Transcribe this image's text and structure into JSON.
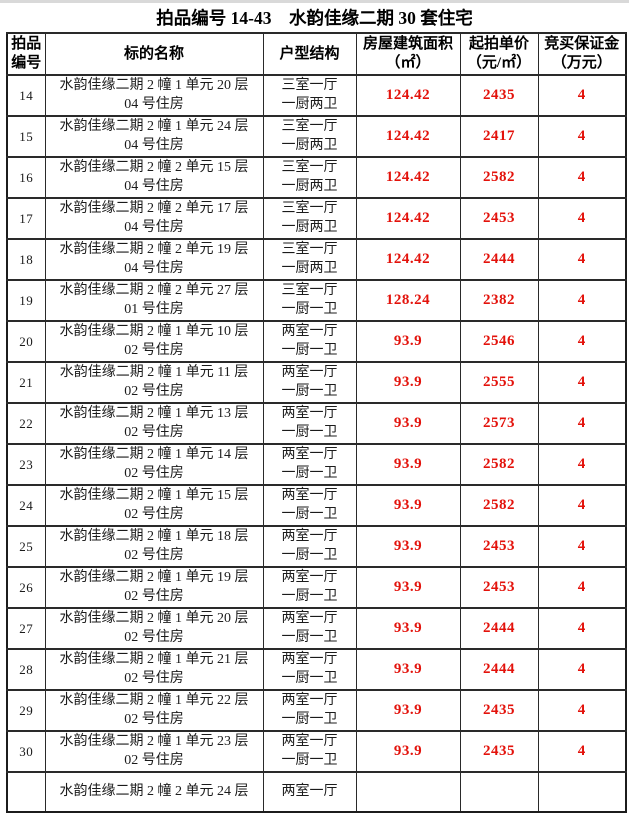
{
  "title": "拍品编号 14-43　水韵佳缘二期 30 套住宅",
  "colors": {
    "value_red": "#e3120b",
    "text_black": "#1b1b1b",
    "border": "#2a2a2a"
  },
  "table": {
    "headers": {
      "id_line1": "拍品",
      "id_line2": "编号",
      "name": "标的名称",
      "structure": "户型结构",
      "area_line1": "房屋建筑面积",
      "area_line2": "（㎡）",
      "price_line1": "起拍单价",
      "price_line2": "（元/㎡）",
      "deposit_line1": "竞买保证金",
      "deposit_line2": "（万元）"
    },
    "rows": [
      {
        "id": "14",
        "name_line1": "水韵佳缘二期 2 幢 1 单元 20 层",
        "name_line2": "04 号住房",
        "structure_line1": "三室一厅",
        "structure_line2": "一厨两卫",
        "area": "124.42",
        "price": "2435",
        "deposit": "4"
      },
      {
        "id": "15",
        "name_line1": "水韵佳缘二期 2 幢 1 单元 24 层",
        "name_line2": "04 号住房",
        "structure_line1": "三室一厅",
        "structure_line2": "一厨两卫",
        "area": "124.42",
        "price": "2417",
        "deposit": "4"
      },
      {
        "id": "16",
        "name_line1": "水韵佳缘二期 2 幢 2 单元 15 层",
        "name_line2": "04 号住房",
        "structure_line1": "三室一厅",
        "structure_line2": "一厨两卫",
        "area": "124.42",
        "price": "2582",
        "deposit": "4"
      },
      {
        "id": "17",
        "name_line1": "水韵佳缘二期 2 幢 2 单元 17 层",
        "name_line2": "04 号住房",
        "structure_line1": "三室一厅",
        "structure_line2": "一厨两卫",
        "area": "124.42",
        "price": "2453",
        "deposit": "4"
      },
      {
        "id": "18",
        "name_line1": "水韵佳缘二期 2 幢 2 单元 19 层",
        "name_line2": "04 号住房",
        "structure_line1": "三室一厅",
        "structure_line2": "一厨两卫",
        "area": "124.42",
        "price": "2444",
        "deposit": "4"
      },
      {
        "id": "19",
        "name_line1": "水韵佳缘二期 2 幢 2 单元 27 层",
        "name_line2": "01 号住房",
        "structure_line1": "三室一厅",
        "structure_line2": "一厨一卫",
        "area": "128.24",
        "price": "2382",
        "deposit": "4"
      },
      {
        "id": "20",
        "name_line1": "水韵佳缘二期 2 幢 1 单元 10 层",
        "name_line2": "02 号住房",
        "structure_line1": "两室一厅",
        "structure_line2": "一厨一卫",
        "area": "93.9",
        "price": "2546",
        "deposit": "4"
      },
      {
        "id": "21",
        "name_line1": "水韵佳缘二期 2 幢 1 单元 11 层",
        "name_line2": "02 号住房",
        "structure_line1": "两室一厅",
        "structure_line2": "一厨一卫",
        "area": "93.9",
        "price": "2555",
        "deposit": "4"
      },
      {
        "id": "22",
        "name_line1": "水韵佳缘二期 2 幢 1 单元 13 层",
        "name_line2": "02 号住房",
        "structure_line1": "两室一厅",
        "structure_line2": "一厨一卫",
        "area": "93.9",
        "price": "2573",
        "deposit": "4"
      },
      {
        "id": "23",
        "name_line1": "水韵佳缘二期 2 幢 1 单元 14 层",
        "name_line2": "02 号住房",
        "structure_line1": "两室一厅",
        "structure_line2": "一厨一卫",
        "area": "93.9",
        "price": "2582",
        "deposit": "4"
      },
      {
        "id": "24",
        "name_line1": "水韵佳缘二期 2 幢 1 单元 15 层",
        "name_line2": "02 号住房",
        "structure_line1": "两室一厅",
        "structure_line2": "一厨一卫",
        "area": "93.9",
        "price": "2582",
        "deposit": "4"
      },
      {
        "id": "25",
        "name_line1": "水韵佳缘二期 2 幢 1 单元 18 层",
        "name_line2": "02 号住房",
        "structure_line1": "两室一厅",
        "structure_line2": "一厨一卫",
        "area": "93.9",
        "price": "2453",
        "deposit": "4"
      },
      {
        "id": "26",
        "name_line1": "水韵佳缘二期 2 幢 1 单元 19 层",
        "name_line2": "02 号住房",
        "structure_line1": "两室一厅",
        "structure_line2": "一厨一卫",
        "area": "93.9",
        "price": "2453",
        "deposit": "4"
      },
      {
        "id": "27",
        "name_line1": "水韵佳缘二期 2 幢 1 单元 20 层",
        "name_line2": "02 号住房",
        "structure_line1": "两室一厅",
        "structure_line2": "一厨一卫",
        "area": "93.9",
        "price": "2444",
        "deposit": "4"
      },
      {
        "id": "28",
        "name_line1": "水韵佳缘二期 2 幢 1 单元 21 层",
        "name_line2": "02 号住房",
        "structure_line1": "两室一厅",
        "structure_line2": "一厨一卫",
        "area": "93.9",
        "price": "2444",
        "deposit": "4"
      },
      {
        "id": "29",
        "name_line1": "水韵佳缘二期 2 幢 1 单元 22 层",
        "name_line2": "02 号住房",
        "structure_line1": "两室一厅",
        "structure_line2": "一厨一卫",
        "area": "93.9",
        "price": "2435",
        "deposit": "4"
      },
      {
        "id": "30",
        "name_line1": "水韵佳缘二期 2 幢 1 单元 23 层",
        "name_line2": "02 号住房",
        "structure_line1": "两室一厅",
        "structure_line2": "一厨一卫",
        "area": "93.9",
        "price": "2435",
        "deposit": "4"
      }
    ],
    "partial_row": {
      "truncated": true,
      "name_line1": "水韵佳缘二期 2 幢 2 单元 24 层",
      "structure_line1": "两室一厅"
    }
  }
}
